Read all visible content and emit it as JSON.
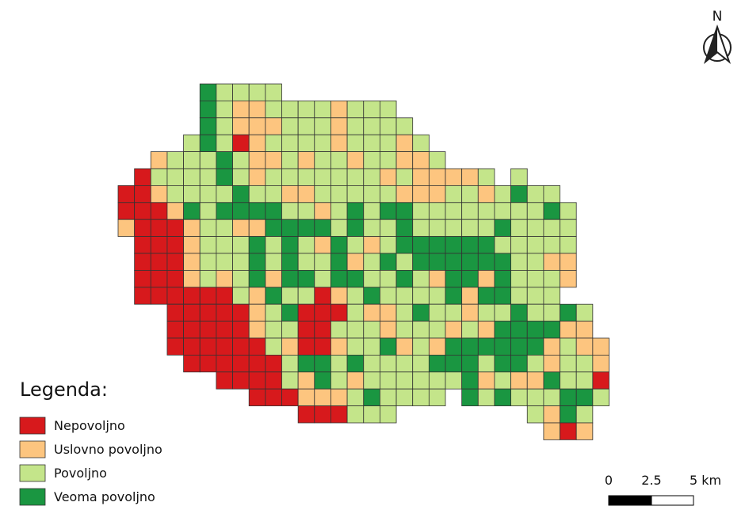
{
  "north": "N",
  "legend": {
    "title": "Legenda:",
    "items": [
      {
        "label": "Nepovoljno",
        "color": "#d7191c"
      },
      {
        "label": "Uslovno povoljno",
        "color": "#fdc57f"
      },
      {
        "label": "Povoljno",
        "color": "#c4e58a"
      },
      {
        "label": "Veoma povoljno",
        "color": "#1a9641"
      }
    ]
  },
  "scale_bar": {
    "labels": [
      "0",
      "2.5",
      "5 km"
    ]
  }
}
